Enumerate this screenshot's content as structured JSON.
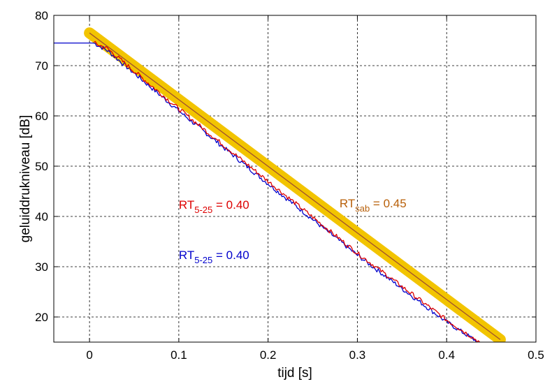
{
  "chart_data": {
    "type": "line",
    "title": "",
    "xlabel": "tijd  [s]",
    "ylabel": "geluiddrukniveau  [dB]",
    "xlim": [
      -0.04,
      0.5
    ],
    "ylim": [
      15,
      80
    ],
    "xticks": [
      0,
      0.1,
      0.2,
      0.3,
      0.4,
      0.5
    ],
    "xtick_labels": [
      "0",
      "0.1",
      "0.2",
      "0.3",
      "0.4",
      "0.5"
    ],
    "yticks": [
      20,
      30,
      40,
      50,
      60,
      70,
      80
    ],
    "ytick_labels": [
      "20",
      "30",
      "40",
      "50",
      "60",
      "70",
      "80"
    ],
    "grid": true,
    "series": [
      {
        "color": "#f2c400",
        "style": "thick-band",
        "points": [
          [
            0,
            76.5
          ],
          [
            0.46,
            15.5
          ]
        ]
      },
      {
        "color": "#a0522d",
        "style": "thin",
        "points": [
          [
            0,
            76.5
          ],
          [
            0.46,
            15.5
          ]
        ]
      },
      {
        "color": "#0000cc",
        "style": "noisy",
        "points": [
          [
            -0.04,
            74.5
          ],
          [
            0.005,
            74.5
          ],
          [
            0.02,
            73.0
          ],
          [
            0.1,
            61.0
          ],
          [
            0.2,
            46.5
          ],
          [
            0.3,
            32.3
          ],
          [
            0.4,
            19.0
          ],
          [
            0.435,
            15.0
          ]
        ]
      },
      {
        "color": "#dd0000",
        "style": "noisy",
        "points": [
          [
            0.005,
            74.5
          ],
          [
            0.02,
            73.4
          ],
          [
            0.1,
            61.4
          ],
          [
            0.2,
            47.0
          ],
          [
            0.3,
            32.7
          ],
          [
            0.4,
            19.4
          ],
          [
            0.437,
            15.0
          ]
        ]
      }
    ],
    "annotations": [
      {
        "base": "RT",
        "sub": "5-25",
        "text": " =  0.40",
        "color": "#dd0000",
        "x": 0.1,
        "y": 41.5
      },
      {
        "base": "RT",
        "sub": "5-25",
        "text": " =  0.40",
        "color": "#0000cc",
        "x": 0.1,
        "y": 31.5
      },
      {
        "base": "RT",
        "sub": "sab",
        "text": " =  0.45",
        "color": "#b8600a",
        "x": 0.28,
        "y": 41.8
      }
    ],
    "colors": {
      "axis": "#000000",
      "grid": "#000000"
    }
  }
}
